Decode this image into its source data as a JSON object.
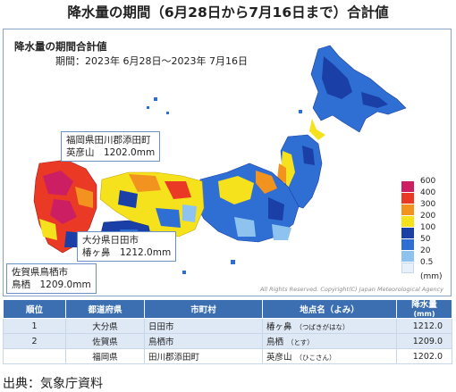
{
  "title": "降水量の期間（6月28日から7月16日まで）合計値",
  "map": {
    "heading": "降水量の期間合計値",
    "period": "期間：2023年 6月28日〜2023年 7月16日",
    "copyright": "All Rights Reserved. Copyright(C) Japan Meteorological Agency",
    "callouts": [
      {
        "line1": "福岡県田川郡添田町",
        "place": "英彦山",
        "value": "1202.0mm"
      },
      {
        "line1": "大分県日田市",
        "place": "椿ヶ鼻",
        "value": "1212.0mm"
      },
      {
        "line1": "佐賀県鳥栖市",
        "place": "鳥栖",
        "value": "1209.0mm"
      }
    ],
    "legend": {
      "unit": "(mm)",
      "items": [
        {
          "label": "600",
          "color": "#cc1f63"
        },
        {
          "label": "400",
          "color": "#ea3a26"
        },
        {
          "label": "300",
          "color": "#f2921f"
        },
        {
          "label": "200",
          "color": "#f5e21d"
        },
        {
          "label": "100",
          "color": "#1a3fa6"
        },
        {
          "label": "50",
          "color": "#2f6fd3"
        },
        {
          "label": "20",
          "color": "#8fc3ef"
        },
        {
          "label": "0.5",
          "color": "#e6f1fb"
        }
      ]
    }
  },
  "table": {
    "headers": {
      "rank": "順位",
      "prefecture": "都道府県",
      "city": "市町村",
      "station": "地点名（よみ）",
      "amount": "降水量",
      "amount_unit": "(mm)"
    },
    "rows": [
      {
        "rank": "1",
        "prefecture": "大分県",
        "city": "日田市",
        "station": "椿ヶ鼻",
        "reading": "（つばきがはな）",
        "amount": "1212.0"
      },
      {
        "rank": "2",
        "prefecture": "佐賀県",
        "city": "鳥栖市",
        "station": "鳥栖",
        "reading": "（とす）",
        "amount": "1209.0"
      },
      {
        "rank": "",
        "prefecture": "福岡県",
        "city": "田川郡添田町",
        "station": "英彦山",
        "reading": "（ひこさん）",
        "amount": "1202.0"
      }
    ]
  },
  "source": "出典：気象庁資料"
}
